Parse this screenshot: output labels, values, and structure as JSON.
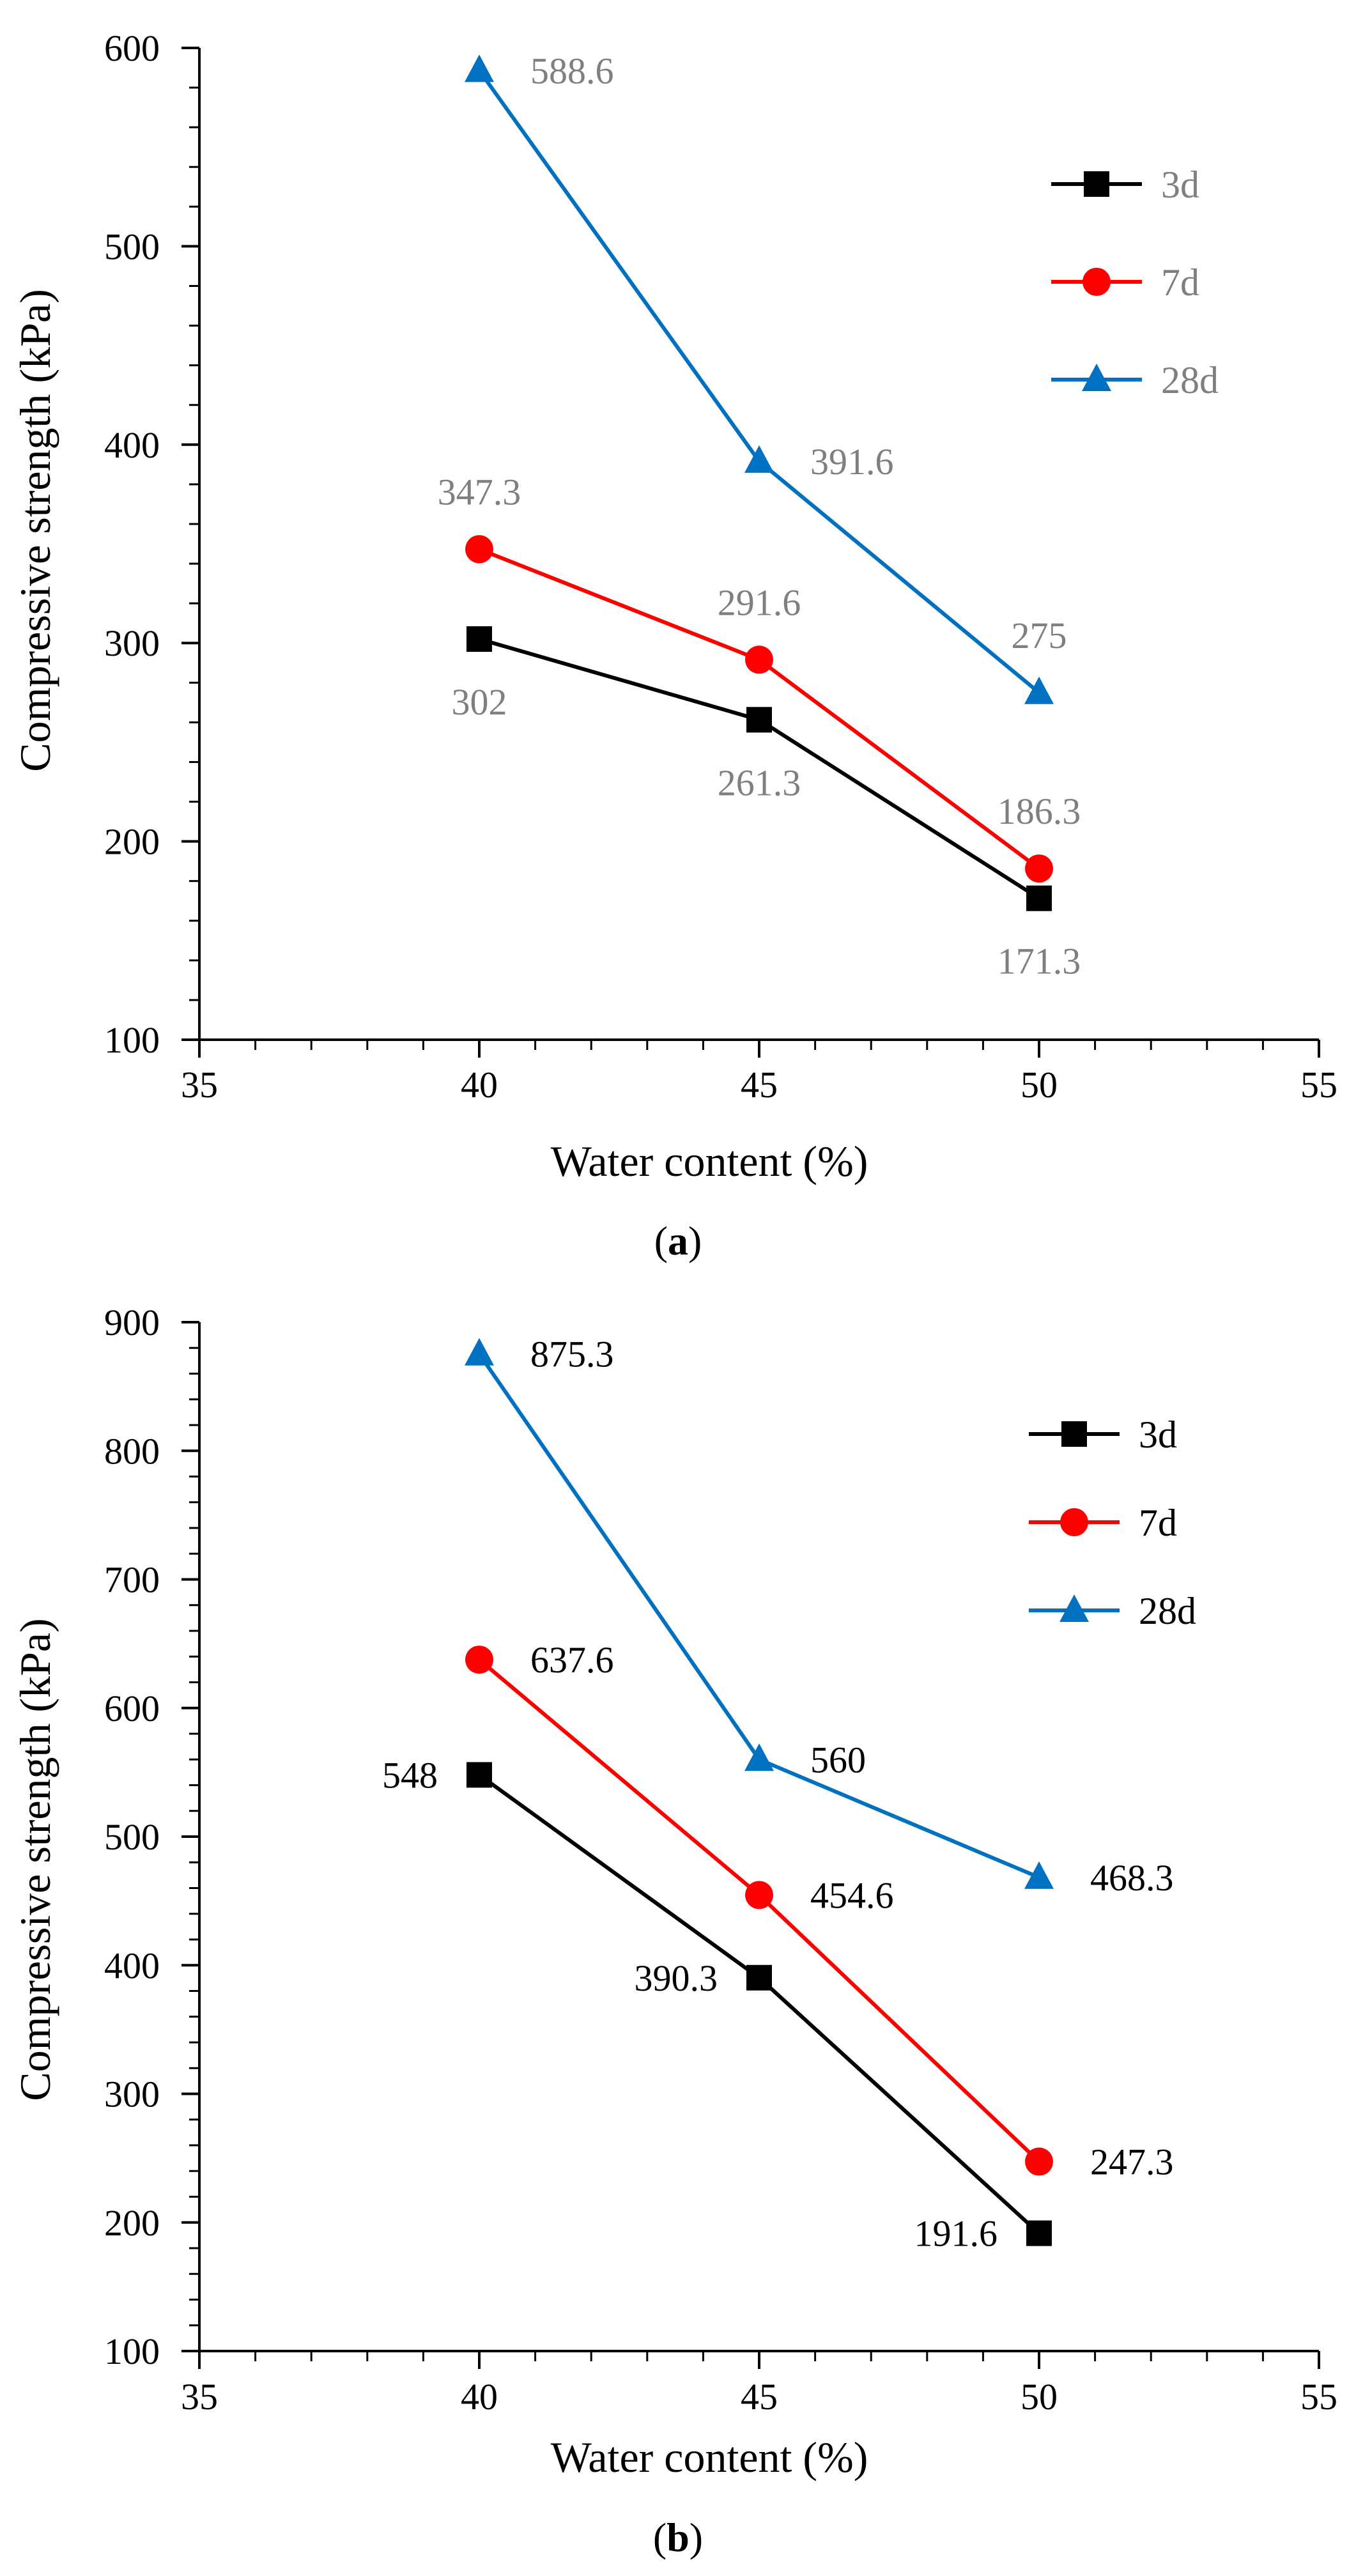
{
  "chart_data": [
    {
      "type": "line",
      "panel": "a",
      "caption_letter": "a",
      "caption_open": "(",
      "caption_close": ")",
      "xlabel": "Water content (%)",
      "ylabel": "Compressive strength (kPa)",
      "xlim": [
        35,
        55
      ],
      "ylim": [
        100,
        600
      ],
      "x_ticks": [
        35,
        40,
        45,
        50,
        55
      ],
      "y_ticks": [
        100,
        200,
        300,
        400,
        500,
        600
      ],
      "x_minor_step": 1,
      "y_minor_step": 20,
      "grid": false,
      "legend_position": "top-right",
      "label_color": "#7f7f7f",
      "series": [
        {
          "name": "3d",
          "color": "#000000",
          "marker": "square",
          "x": [
            40,
            45,
            50
          ],
          "values": [
            302,
            261.3,
            171.3
          ],
          "labels": [
            "302",
            "261.3",
            "171.3"
          ],
          "label_placement": [
            "below",
            "below",
            "below"
          ]
        },
        {
          "name": "7d",
          "color": "#ff0000",
          "marker": "circle",
          "x": [
            40,
            45,
            50
          ],
          "values": [
            347.3,
            291.6,
            186.3
          ],
          "labels": [
            "347.3",
            "291.6",
            "186.3"
          ],
          "label_placement": [
            "above",
            "above",
            "above"
          ]
        },
        {
          "name": "28d",
          "color": "#0070c0",
          "marker": "triangle",
          "x": [
            40,
            45,
            50
          ],
          "values": [
            588.6,
            391.6,
            275
          ],
          "labels": [
            "588.6",
            "391.6",
            "275"
          ],
          "label_placement": [
            "right",
            "right",
            "above"
          ]
        }
      ]
    },
    {
      "type": "line",
      "panel": "b",
      "caption_letter": "b",
      "caption_open": "(",
      "caption_close": ")",
      "xlabel": "Water content (%)",
      "ylabel": "Compressive strength (kPa)",
      "xlim": [
        35,
        55
      ],
      "ylim": [
        100,
        900
      ],
      "x_ticks": [
        35,
        40,
        45,
        50,
        55
      ],
      "y_ticks": [
        100,
        200,
        300,
        400,
        500,
        600,
        700,
        800,
        900
      ],
      "x_minor_step": 1,
      "y_minor_step": 20,
      "grid": false,
      "legend_position": "top-right",
      "label_color": "#000000",
      "series": [
        {
          "name": "3d",
          "color": "#000000",
          "marker": "square",
          "x": [
            40,
            45,
            50
          ],
          "values": [
            548,
            390.3,
            191.6
          ],
          "labels": [
            "548",
            "390.3",
            "191.6"
          ],
          "label_placement": [
            "left",
            "left",
            "left"
          ]
        },
        {
          "name": "7d",
          "color": "#ff0000",
          "marker": "circle",
          "x": [
            40,
            45,
            50
          ],
          "values": [
            637.6,
            454.6,
            247.3
          ],
          "labels": [
            "637.6",
            "454.6",
            "247.3"
          ],
          "label_placement": [
            "right",
            "right",
            "right"
          ]
        },
        {
          "name": "28d",
          "color": "#0070c0",
          "marker": "triangle",
          "x": [
            40,
            45,
            50
          ],
          "values": [
            875.3,
            560,
            468.3
          ],
          "labels": [
            "875.3",
            "560",
            "468.3"
          ],
          "label_placement": [
            "right",
            "right",
            "right"
          ]
        }
      ]
    }
  ]
}
